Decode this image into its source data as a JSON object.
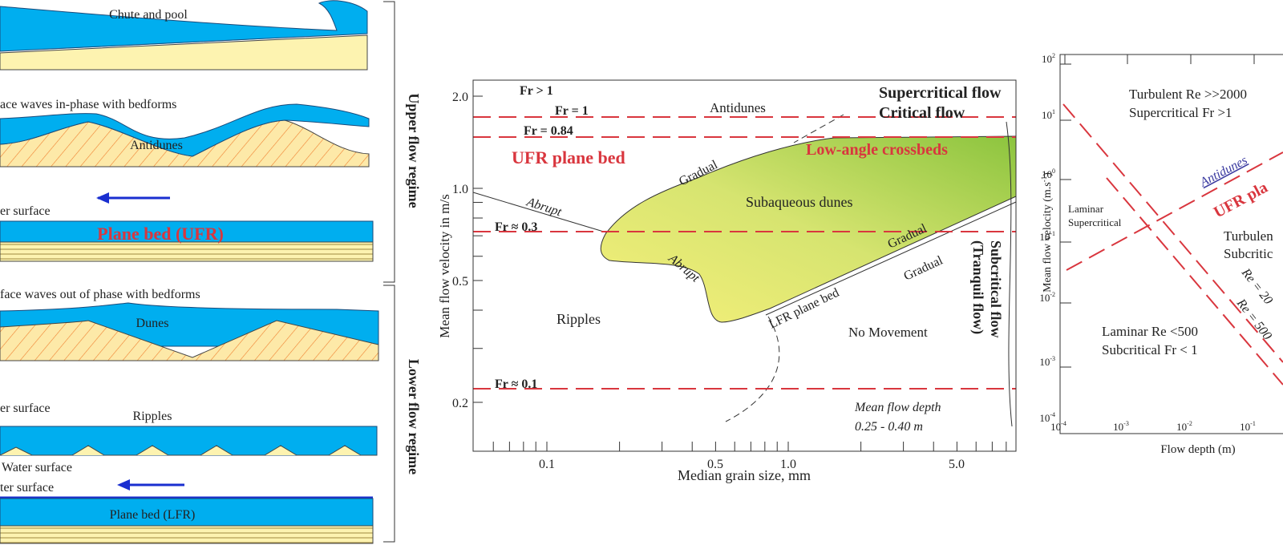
{
  "left_panel": {
    "chute_and_pool": {
      "label": "Chute and pool"
    },
    "antidunes": {
      "caption": "ace waves in-phase with bedforms",
      "label": "Antidunes"
    },
    "upper_plane_bed": {
      "caption": "er surface",
      "label": "Plane bed (UFR)"
    },
    "dunes": {
      "caption": "face waves out of phase with bedforms",
      "label": "Dunes"
    },
    "ripples": {
      "caption": "er surface",
      "label": "Ripples"
    },
    "lower_plane_bed": {
      "caption_1": "Water surface",
      "caption_2": "ter surface",
      "label": "Plane bed (LFR)"
    },
    "regimes": {
      "upper": "Upper flow regime",
      "lower": "Lower flow regime"
    }
  },
  "middle_chart": {
    "y_label": "Mean flow velocity in m/s",
    "x_label": "Median grain size, mm",
    "yticks": [
      "2.0",
      "1.0",
      "0.5",
      "0.2"
    ],
    "xticks": [
      "0.1",
      "0.5",
      "1.0",
      "5.0"
    ],
    "labels": {
      "fr_gt_1": "Fr > 1",
      "fr_eq_1": "Fr = 1",
      "fr_084": "Fr = 0.84",
      "ufr_plane_bed": "UFR plane bed",
      "antidunes": "Antidunes",
      "supercritical": "Supercritical flow",
      "critical": "Critical flow",
      "low_angle": "Low-angle crossbeds",
      "gradual_top": "Gradual",
      "subaqueous_dunes": "Subaqueous dunes",
      "abrupt_left": "Abrupt",
      "fr_03": "Fr ≈ 0.3",
      "gradual_right": "Gradual",
      "abrupt_lower": "Abrupt",
      "gradual_lower": "Gradual",
      "lfr_plane_bed": "LFR plane bed",
      "no_movement": "No Movement",
      "ripples": "Ripples",
      "subcritical_1": "Subcritical flow",
      "subcritical_2": "(Tranquil flow)",
      "fr_01": "Fr ≈ 0.1",
      "depth_1": "Mean flow depth",
      "depth_2": "0.25 - 0.40 m"
    }
  },
  "right_chart": {
    "y_label": "Mean flow velocity (m.s",
    "y_label_exp": "-1",
    "y_label_end": ")",
    "x_label": "Flow depth (m)",
    "yticks": [
      {
        "base": "10",
        "exp": "2"
      },
      {
        "base": "10",
        "exp": "1"
      },
      {
        "base": "10",
        "exp": "0"
      },
      {
        "base": "10",
        "exp": "-1"
      },
      {
        "base": "10",
        "exp": "-2"
      },
      {
        "base": "10",
        "exp": "-3"
      },
      {
        "base": "10",
        "exp": "-4"
      }
    ],
    "xticks": [
      {
        "base": "10",
        "exp": "-4"
      },
      {
        "base": "10",
        "exp": "-3"
      },
      {
        "base": "10",
        "exp": "-2"
      },
      {
        "base": "10",
        "exp": "-1"
      }
    ],
    "labels": {
      "turbulent_super_1": "Turbulent Re >>2000",
      "turbulent_super_2": "Supercritical Fr >1",
      "antidunes": "Antidunes",
      "ufr": "UFR pla",
      "laminar_super_1": "Laminar",
      "laminar_super_2": "Supercritical",
      "turbulent_sub_1": "Turbulen",
      "turbulent_sub_2": "Subcritic",
      "re_2000": "Re = 20",
      "re_500": "Re = 500",
      "laminar_sub_1": "Laminar Re <500",
      "laminar_sub_2": "Subcritical Fr < 1"
    }
  }
}
